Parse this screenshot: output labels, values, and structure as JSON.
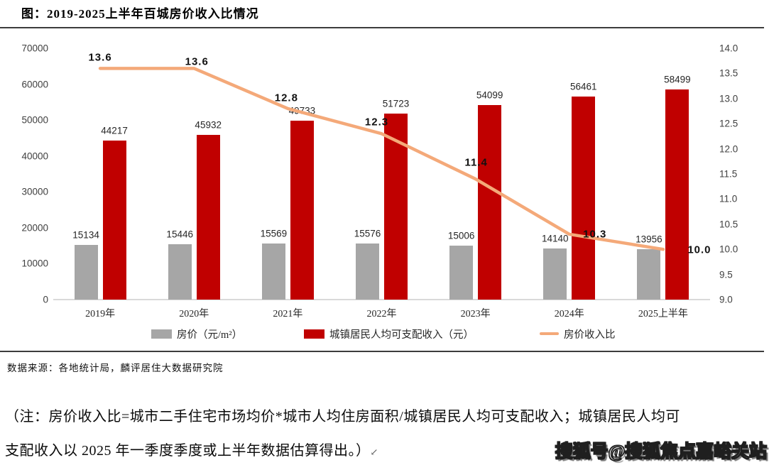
{
  "title": "图：2019-2025上半年百城房价收入比情况",
  "source_note": "数据来源：各地统计局，麟评居住大数据研究院",
  "footnote": {
    "line1": "（注：房价收入比=城市二手住宅市场均价*城市人均住房面积/城镇居民人均可支配收入；城镇居民人均可",
    "line2": "支配收入以 2025 年一季度季度或上半年数据估算得出。）",
    "paragraph_mark": "↙"
  },
  "watermark": "搜狐号@搜狐焦点嘉峪关站",
  "colors": {
    "price_bar": "#A6A6A6",
    "income_bar": "#C00000",
    "ratio_line": "#F4A979",
    "axis_text": "#404040",
    "axis_line": "#D9D9D9"
  },
  "chart_data": {
    "type": "bar",
    "title": "图：2019-2025上半年百城房价收入比情况",
    "categories": [
      "2019年",
      "2020年",
      "2021年",
      "2022年",
      "2023年",
      "2024年",
      "2025上半年"
    ],
    "series": [
      {
        "name": "房价（元/m²）",
        "type": "bar",
        "axis": "left",
        "color": "#A6A6A6",
        "values": [
          15134,
          15446,
          15569,
          15576,
          15006,
          14140,
          13956
        ]
      },
      {
        "name": "城镇居民人均可支配收入（元）",
        "type": "bar",
        "axis": "left",
        "color": "#C00000",
        "values": [
          44217,
          45932,
          49733,
          51723,
          54099,
          56461,
          58499
        ]
      },
      {
        "name": "房价收入比",
        "type": "line",
        "axis": "right",
        "color": "#F4A979",
        "values": [
          13.6,
          13.6,
          12.8,
          12.3,
          11.4,
          10.3,
          10.0
        ],
        "labels": [
          "13.6",
          "13.6",
          "12.8",
          "12.3",
          "11.4",
          "10.3",
          "10.0"
        ]
      }
    ],
    "left_axis": {
      "min": 0,
      "max": 70000,
      "ticks": [
        70000,
        60000,
        50000,
        40000,
        30000,
        20000,
        10000,
        0
      ]
    },
    "right_axis": {
      "min": 9.0,
      "max": 14.0,
      "ticks": [
        14.0,
        13.5,
        13.0,
        12.5,
        12.0,
        11.5,
        11.0,
        10.5,
        10.0,
        9.5,
        9.0
      ]
    },
    "grid": false,
    "legend_position": "bottom"
  }
}
